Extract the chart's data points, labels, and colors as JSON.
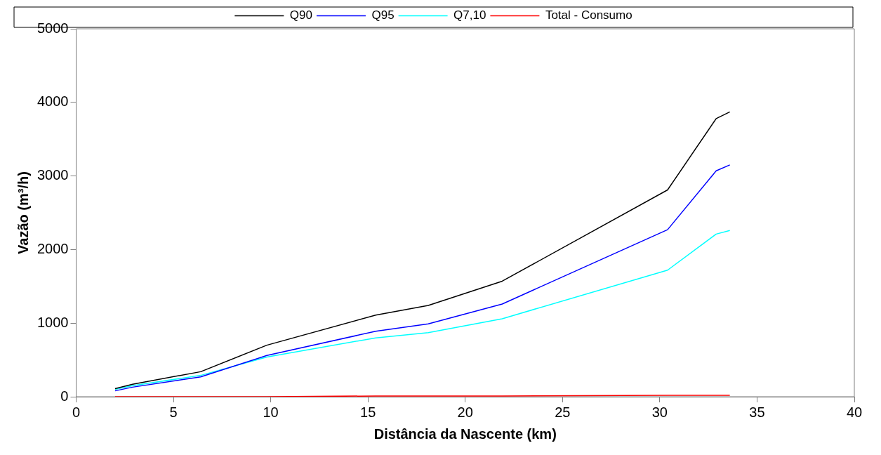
{
  "chart_data": {
    "type": "line",
    "xlabel": "Distância da Nascente (km)",
    "ylabel": "Vazão (m³/h)",
    "x": [
      2.0,
      2.9,
      6.4,
      9.8,
      15.4,
      18.1,
      21.9,
      30.4,
      32.9,
      33.6
    ],
    "series": [
      {
        "name": "Q90",
        "color": "#000000",
        "values": [
          110,
          170,
          340,
          700,
          1110,
          1240,
          1570,
          2810,
          3780,
          3870
        ]
      },
      {
        "name": "Q95",
        "color": "#0000ff",
        "values": [
          80,
          130,
          270,
          560,
          890,
          990,
          1260,
          2270,
          3070,
          3150
        ]
      },
      {
        "name": "Q7,10",
        "color": "#00ffff",
        "values": [
          100,
          150,
          290,
          540,
          800,
          870,
          1060,
          1720,
          2210,
          2260
        ]
      },
      {
        "name": "Total - Consumo",
        "color": "#ff0000",
        "values": [
          0,
          0,
          0,
          0,
          10,
          10,
          10,
          20,
          20,
          20
        ]
      }
    ],
    "xlim": [
      0,
      40
    ],
    "xticks": [
      0,
      5,
      10,
      15,
      20,
      25,
      30,
      35,
      40
    ],
    "ylim": [
      0,
      5000
    ],
    "yticks": [
      0,
      1000,
      2000,
      3000,
      4000,
      5000
    ],
    "grid": false,
    "legend": "top",
    "marker": "none",
    "line_style": "solid"
  }
}
